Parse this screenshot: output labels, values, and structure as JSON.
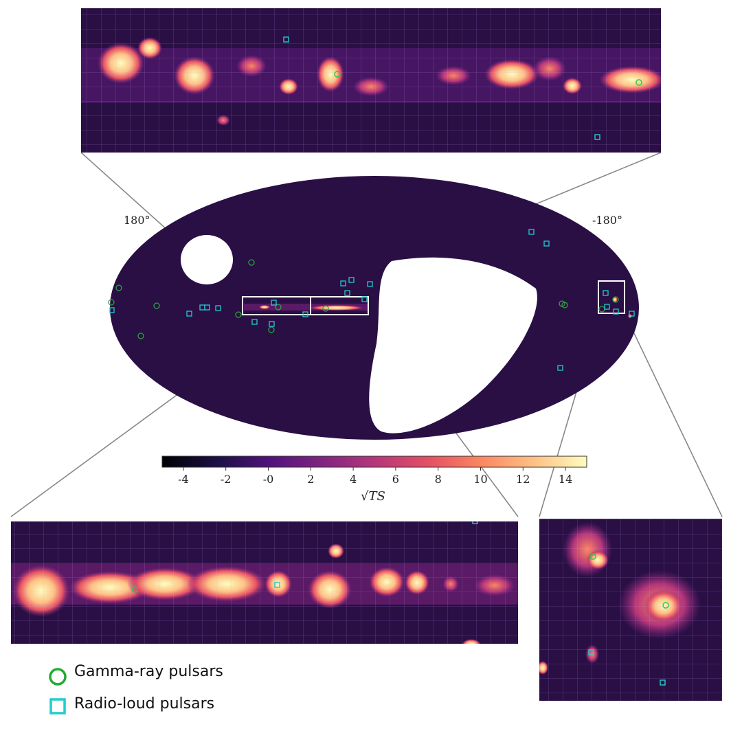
{
  "chart_data": {
    "type": "heatmap",
    "projection": "Aitoff all-sky map with three zoomed insets",
    "colormap": "magma",
    "colorbar": {
      "label": "√TS",
      "range": [
        -5,
        15
      ],
      "ticks": [
        -4,
        -2,
        0,
        2,
        4,
        6,
        8,
        10,
        12,
        14
      ],
      "tick_labels": [
        "-4",
        "-2",
        "-0",
        "2",
        "4",
        "6",
        "8",
        "10",
        "12",
        "14"
      ]
    },
    "longitude_labels": {
      "left": "180°",
      "right": "-180°"
    },
    "legend": [
      {
        "name": "Gamma-ray pulsars",
        "marker": "circle",
        "color": "#22aa33"
      },
      {
        "name": "Radio-loud pulsars",
        "marker": "square",
        "color": "#22cccc"
      }
    ],
    "insets": [
      {
        "name": "top inset",
        "region": "inner Galactic plane (right box)"
      },
      {
        "name": "bottom-left inset",
        "region": "Galactic plane (left box)"
      },
      {
        "name": "bottom-right inset",
        "region": "far-right region"
      }
    ]
  },
  "colors": {
    "background": "#ffffff",
    "map_base": "#2a0f45",
    "gamma_marker": "#22aa33",
    "radio_marker": "#22cccc",
    "connector": "#888888"
  }
}
